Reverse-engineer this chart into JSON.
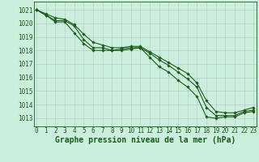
{
  "background_color": "#cceedd",
  "grid_color_minor": "#bbcccc",
  "grid_color_major": "#99bbbb",
  "line_color": "#1a5c1a",
  "marker_color": "#1a5c1a",
  "xlabel": "Graphe pression niveau de la mer (hPa)",
  "xlabel_fontsize": 7,
  "tick_fontsize": 5.5,
  "xlim": [
    -0.3,
    23.3
  ],
  "ylim": [
    1012.4,
    1021.6
  ],
  "yticks": [
    1013,
    1014,
    1015,
    1016,
    1017,
    1018,
    1019,
    1020,
    1021
  ],
  "xticks": [
    0,
    1,
    2,
    3,
    4,
    5,
    6,
    7,
    8,
    9,
    10,
    11,
    12,
    13,
    14,
    15,
    16,
    17,
    18,
    19,
    20,
    21,
    22,
    23
  ],
  "series": [
    [
      1021.0,
      1020.6,
      1020.1,
      1020.1,
      1019.3,
      1018.5,
      1018.0,
      1018.0,
      1018.0,
      1018.0,
      1018.1,
      1018.2,
      1017.5,
      1016.8,
      1016.4,
      1015.8,
      1015.3,
      1014.6,
      1013.1,
      1013.0,
      1013.1,
      1013.1,
      1013.4,
      1013.5
    ],
    [
      1021.0,
      1020.6,
      1020.2,
      1020.2,
      1019.8,
      1018.8,
      1018.2,
      1018.2,
      1018.0,
      1018.1,
      1018.2,
      1018.2,
      1017.8,
      1017.3,
      1016.9,
      1016.4,
      1015.9,
      1015.3,
      1013.8,
      1013.2,
      1013.2,
      1013.2,
      1013.5,
      1013.6
    ],
    [
      1021.0,
      1020.7,
      1020.4,
      1020.3,
      1019.9,
      1019.2,
      1018.6,
      1018.4,
      1018.2,
      1018.2,
      1018.3,
      1018.3,
      1017.9,
      1017.5,
      1017.1,
      1016.7,
      1016.3,
      1015.6,
      1014.3,
      1013.5,
      1013.4,
      1013.4,
      1013.6,
      1013.8
    ]
  ]
}
